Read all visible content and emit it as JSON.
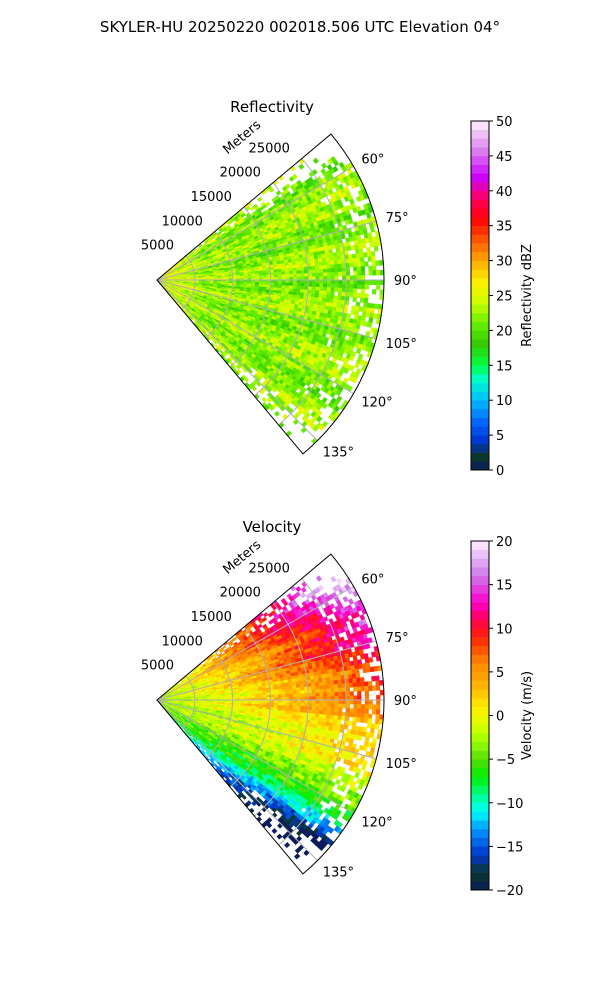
{
  "figure": {
    "suptitle": "SKYLER-HU  20250220  002018.506 UTC Elevation 04°"
  },
  "chart_data": [
    {
      "type": "heatmap",
      "subtype": "polar-sector radar PPI",
      "title": "Reflectivity",
      "radial_label": "Meters",
      "radial_ticks": [
        "5000",
        "10000",
        "15000",
        "20000",
        "25000"
      ],
      "radial_tick_values": [
        5000,
        10000,
        15000,
        20000,
        25000
      ],
      "rmax": 30000,
      "angular_ticks": [
        "60°",
        "75°",
        "90°",
        "105°",
        "120°",
        "135°"
      ],
      "angular_tick_values": [
        60,
        75,
        90,
        105,
        120,
        135
      ],
      "theta_range": [
        50,
        140
      ],
      "grid": true,
      "colorbar": {
        "label": "Reflectivity dBZ",
        "range": [
          0,
          50
        ],
        "ticks": [
          "0",
          "5",
          "10",
          "15",
          "20",
          "25",
          "30",
          "35",
          "40",
          "45",
          "50"
        ],
        "tick_values": [
          0,
          5,
          10,
          15,
          20,
          25,
          30,
          35,
          40,
          45,
          50
        ],
        "stops": [
          {
            "v": 0,
            "c": "#0a1a5a"
          },
          {
            "v": 2,
            "c": "#0a3a2a"
          },
          {
            "v": 4,
            "c": "#0033cc"
          },
          {
            "v": 7,
            "c": "#0066ff"
          },
          {
            "v": 10,
            "c": "#00bbff"
          },
          {
            "v": 13,
            "c": "#00ffcc"
          },
          {
            "v": 15,
            "c": "#00ff44"
          },
          {
            "v": 18,
            "c": "#33cc00"
          },
          {
            "v": 21,
            "c": "#66ee00"
          },
          {
            "v": 24,
            "c": "#ccff00"
          },
          {
            "v": 27,
            "c": "#ffee00"
          },
          {
            "v": 30,
            "c": "#ffaa00"
          },
          {
            "v": 33,
            "c": "#ff5500"
          },
          {
            "v": 36,
            "c": "#ff0000"
          },
          {
            "v": 39,
            "c": "#ff0066"
          },
          {
            "v": 42,
            "c": "#cc00ff"
          },
          {
            "v": 46,
            "c": "#dd88ee"
          },
          {
            "v": 50,
            "c": "#fff0ff"
          }
        ]
      },
      "field_summary": {
        "typical": 22,
        "spread": 3,
        "near_radar": 27,
        "far_range_sparse": true
      }
    },
    {
      "type": "heatmap",
      "subtype": "polar-sector radar PPI",
      "title": "Velocity",
      "radial_label": "Meters",
      "radial_ticks": [
        "5000",
        "10000",
        "15000",
        "20000",
        "25000"
      ],
      "radial_tick_values": [
        5000,
        10000,
        15000,
        20000,
        25000
      ],
      "rmax": 30000,
      "angular_ticks": [
        "60°",
        "75°",
        "90°",
        "105°",
        "120°",
        "135°"
      ],
      "angular_tick_values": [
        60,
        75,
        90,
        105,
        120,
        135
      ],
      "theta_range": [
        50,
        140
      ],
      "grid": true,
      "colorbar": {
        "label": "Velocity (m/s)",
        "range": [
          -20,
          20
        ],
        "ticks": [
          "−20",
          "−15",
          "−10",
          "−5",
          "0",
          "5",
          "10",
          "15",
          "20"
        ],
        "tick_values": [
          -20,
          -15,
          -10,
          -5,
          0,
          5,
          10,
          15,
          20
        ],
        "stops": [
          {
            "v": -20,
            "c": "#0a1a5a"
          },
          {
            "v": -18,
            "c": "#0a3a2a"
          },
          {
            "v": -16,
            "c": "#0033cc"
          },
          {
            "v": -13,
            "c": "#0099ff"
          },
          {
            "v": -11,
            "c": "#00ffff"
          },
          {
            "v": -9,
            "c": "#00ff88"
          },
          {
            "v": -7,
            "c": "#00ee00"
          },
          {
            "v": -5,
            "c": "#55dd00"
          },
          {
            "v": -3,
            "c": "#99ff00"
          },
          {
            "v": -1,
            "c": "#ddff00"
          },
          {
            "v": 1,
            "c": "#ffee00"
          },
          {
            "v": 3,
            "c": "#ffbb00"
          },
          {
            "v": 6,
            "c": "#ff8800"
          },
          {
            "v": 9,
            "c": "#ff2200"
          },
          {
            "v": 11,
            "c": "#ff0055"
          },
          {
            "v": 13,
            "c": "#ff00cc"
          },
          {
            "v": 16,
            "c": "#cc77ee"
          },
          {
            "v": 20,
            "c": "#fff0ff"
          }
        ]
      },
      "field_summary": {
        "near_radar": -3,
        "mid_range": 3,
        "far_north": 13,
        "far_south": -8
      }
    }
  ]
}
